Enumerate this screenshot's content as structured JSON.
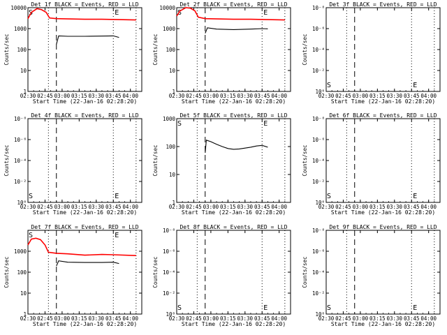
{
  "figure": {
    "xlabel": "Start Time (22-Jan-16 02:28:20)",
    "ylabel": "Counts/sec",
    "x_ticks": [
      "02:30",
      "02:45",
      "03:00",
      "03:15",
      "03:30",
      "03:45",
      "04:00"
    ],
    "colors": {
      "events": "#000000",
      "lld": "#ff0000"
    }
  },
  "chart_data": [
    {
      "type": "line",
      "title": "Det 1f BLACK = Events, RED = LLD",
      "scale": "log",
      "ylim": [
        1,
        10000
      ],
      "y_ticks": [
        "1",
        "10",
        "100",
        "1000",
        "10000"
      ],
      "markers": {
        "S": "02:30",
        "E": "03:45"
      },
      "dotted_lines": [
        "02:30",
        "02:48",
        "03:45",
        "04:05"
      ],
      "dashed_lines": [
        "02:55"
      ],
      "series": [
        {
          "name": "Events",
          "color": "#000000",
          "x": [
            "02:55",
            "02:57",
            "03:05",
            "03:20",
            "03:35",
            "03:45",
            "03:50"
          ],
          "values": [
            180,
            450,
            430,
            430,
            440,
            450,
            380
          ]
        },
        {
          "name": "LLD",
          "color": "#ff0000",
          "x": [
            "02:30",
            "02:33",
            "02:38",
            "02:42",
            "02:46",
            "02:49",
            "02:55",
            "03:05",
            "03:20",
            "03:35",
            "03:50",
            "04:05"
          ],
          "values": [
            3000,
            6000,
            9000,
            8000,
            6000,
            3200,
            3000,
            2900,
            2800,
            2800,
            2700,
            2600
          ]
        }
      ]
    },
    {
      "type": "line",
      "title": "Det 2f BLACK = Events, RED = LLD",
      "scale": "log",
      "ylim": [
        1,
        10000
      ],
      "y_ticks": [
        "1",
        "10",
        "100",
        "1000",
        "10000"
      ],
      "markers": {
        "S": "02:30",
        "E": "03:45"
      },
      "dotted_lines": [
        "02:30",
        "02:48",
        "03:45",
        "04:05"
      ],
      "dashed_lines": [
        "02:55"
      ],
      "series": [
        {
          "name": "Events",
          "color": "#000000",
          "x": [
            "02:55",
            "02:57",
            "03:05",
            "03:20",
            "03:35",
            "03:45",
            "03:50"
          ],
          "values": [
            600,
            1100,
            950,
            900,
            950,
            1000,
            980
          ]
        },
        {
          "name": "LLD",
          "color": "#ff0000",
          "x": [
            "02:30",
            "02:33",
            "02:38",
            "02:42",
            "02:46",
            "02:49",
            "02:55",
            "03:05",
            "03:20",
            "03:35",
            "03:50",
            "04:05"
          ],
          "values": [
            4000,
            7000,
            10000,
            9500,
            7000,
            3500,
            3000,
            2900,
            2800,
            2800,
            2700,
            2600
          ]
        }
      ]
    },
    {
      "type": "line",
      "title": "Det 3f BLACK = Events, RED = LLD",
      "scale": "log",
      "ylim": [
        1,
        1e-08
      ],
      "y_ticks": [
        "10⁰",
        "10⁻²",
        "10⁻⁴",
        "10⁻⁶",
        "10⁻⁸"
      ],
      "markers": {
        "S": "02:30",
        "E": "03:45"
      },
      "dotted_lines": [
        "02:30",
        "02:48",
        "03:45",
        "04:05"
      ],
      "dashed_lines": [
        "02:55"
      ],
      "series": []
    },
    {
      "type": "line",
      "title": "Det 4f BLACK = Events, RED = LLD",
      "scale": "log",
      "ylim": [
        1,
        1e-08
      ],
      "y_ticks": [
        "10⁰",
        "10⁻²",
        "10⁻⁴",
        "10⁻⁶",
        "10⁻⁸"
      ],
      "markers": {
        "S": "02:30",
        "E": "03:45"
      },
      "dotted_lines": [
        "02:30",
        "02:48",
        "03:45",
        "04:05"
      ],
      "dashed_lines": [
        "02:55"
      ],
      "series": []
    },
    {
      "type": "line",
      "title": "Det 5f BLACK = Events, RED = LLD",
      "scale": "log",
      "ylim": [
        1,
        1000
      ],
      "y_ticks": [
        "1",
        "10",
        "100",
        "1000"
      ],
      "markers": {
        "S": "02:30",
        "E": "03:45"
      },
      "dotted_lines": [
        "02:30",
        "02:48",
        "03:45",
        "04:05"
      ],
      "dashed_lines": [
        "02:55"
      ],
      "series": [
        {
          "name": "Events",
          "color": "#000000",
          "x": [
            "02:55",
            "02:56",
            "03:00",
            "03:05",
            "03:10",
            "03:15",
            "03:20",
            "03:25",
            "03:30",
            "03:35",
            "03:40",
            "03:45",
            "03:50"
          ],
          "values": [
            60,
            170,
            150,
            120,
            100,
            85,
            80,
            82,
            88,
            95,
            105,
            110,
            95
          ]
        }
      ]
    },
    {
      "type": "line",
      "title": "Det 6f BLACK = Events, RED = LLD",
      "scale": "log",
      "ylim": [
        1,
        1e-08
      ],
      "y_ticks": [
        "10⁰",
        "10⁻²",
        "10⁻⁴",
        "10⁻⁶",
        "10⁻⁸"
      ],
      "markers": {
        "S": "02:30",
        "E": "03:45"
      },
      "dotted_lines": [
        "02:30",
        "02:48",
        "03:45",
        "04:05"
      ],
      "dashed_lines": [
        "02:55"
      ],
      "series": []
    },
    {
      "type": "line",
      "title": "Det 7f BLACK = Events, RED = LLD",
      "scale": "log",
      "ylim": [
        1,
        10000
      ],
      "y_ticks": [
        "1",
        "10",
        "100",
        "1000"
      ],
      "markers": {
        "S": "02:30",
        "E": "03:45"
      },
      "dotted_lines": [
        "02:30",
        "02:48",
        "03:45",
        "04:05"
      ],
      "dashed_lines": [
        "02:55"
      ],
      "series": [
        {
          "name": "Events",
          "color": "#000000",
          "x": [
            "02:55",
            "02:57",
            "03:05",
            "03:20",
            "03:35",
            "03:45",
            "03:50"
          ],
          "values": [
            200,
            350,
            300,
            290,
            290,
            300,
            260
          ]
        },
        {
          "name": "LLD",
          "color": "#ff0000",
          "x": [
            "02:30",
            "02:33",
            "02:37",
            "02:41",
            "02:45",
            "02:48",
            "02:55",
            "03:05",
            "03:20",
            "03:35",
            "03:45",
            "04:05"
          ],
          "values": [
            2000,
            3800,
            4200,
            3600,
            2000,
            900,
            800,
            750,
            650,
            700,
            680,
            620
          ]
        }
      ]
    },
    {
      "type": "line",
      "title": "Det 8f BLACK = Events, RED = LLD",
      "scale": "log",
      "ylim": [
        1,
        1e-08
      ],
      "y_ticks": [
        "10⁰",
        "10⁻²",
        "10⁻⁴",
        "10⁻⁶",
        "10⁻⁸"
      ],
      "markers": {
        "S": "02:30",
        "E": "03:45"
      },
      "dotted_lines": [
        "02:30",
        "02:48",
        "03:45",
        "04:05"
      ],
      "dashed_lines": [
        "02:55"
      ],
      "series": []
    },
    {
      "type": "line",
      "title": "Det 9f BLACK = Events, RED = LLD",
      "scale": "log",
      "ylim": [
        1,
        1e-08
      ],
      "y_ticks": [
        "10⁰",
        "10⁻²",
        "10⁻⁴",
        "10⁻⁶",
        "10⁻⁸"
      ],
      "markers": {
        "S": "02:30",
        "E": "03:45"
      },
      "dotted_lines": [
        "02:30",
        "02:48",
        "03:45",
        "04:05"
      ],
      "dashed_lines": [
        "02:55"
      ],
      "series": []
    }
  ]
}
